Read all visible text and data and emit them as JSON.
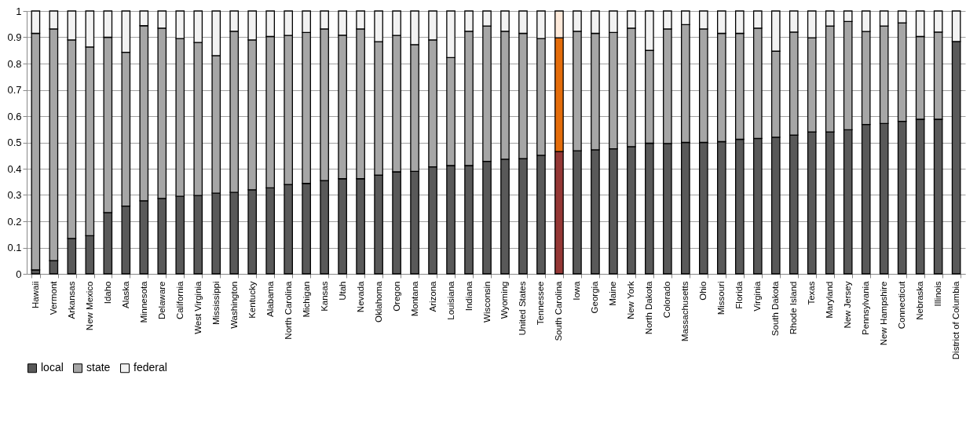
{
  "chart_data": {
    "type": "bar",
    "stacked": true,
    "categories": [
      "Hawaii",
      "Vermont",
      "Arkansas",
      "New Mexico",
      "Idaho",
      "Alaska",
      "Minnesota",
      "Delaware",
      "California",
      "West Virginia",
      "Mississippi",
      "Washington",
      "Kentucky",
      "Alabama",
      "North Carolina",
      "Michigan",
      "Kansas",
      "Utah",
      "Nevada",
      "Oklahoma",
      "Oregon",
      "Montana",
      "Arizona",
      "Louisiana",
      "Indiana",
      "Wisconsin",
      "Wyoming",
      "United States",
      "Tennessee",
      "South Carolina",
      "Iowa",
      "Georgia",
      "Maine",
      "New York",
      "North Dakota",
      "Colorado",
      "Massachusetts",
      "Ohio",
      "Missouri",
      "Florida",
      "Virginia",
      "South Dakota",
      "Rhode Island",
      "Texas",
      "Maryland",
      "New Jersey",
      "Pennsylvania",
      "New Hampshire",
      "Connecticut",
      "Nebraska",
      "Illinois",
      "District of Columbia"
    ],
    "series": [
      {
        "name": "local",
        "color": "#595959",
        "colors": [
          "#595959",
          "#595959",
          "#595959",
          "#595959",
          "#595959",
          "#595959",
          "#595959",
          "#595959",
          "#595959",
          "#595959",
          "#595959",
          "#595959",
          "#595959",
          "#595959",
          "#595959",
          "#595959",
          "#595959",
          "#595959",
          "#595959",
          "#595959",
          "#595959",
          "#595959",
          "#595959",
          "#595959",
          "#595959",
          "#595959",
          "#595959",
          "#595959",
          "#595959",
          "#953735",
          "#595959",
          "#595959",
          "#595959",
          "#595959",
          "#595959",
          "#595959",
          "#595959",
          "#595959",
          "#595959",
          "#595959",
          "#595959",
          "#595959",
          "#595959",
          "#595959",
          "#595959",
          "#595959",
          "#595959",
          "#595959",
          "#595959",
          "#595959",
          "#595959",
          "#595959"
        ],
        "values": [
          0.015,
          0.05,
          0.135,
          0.145,
          0.233,
          0.258,
          0.278,
          0.287,
          0.295,
          0.298,
          0.307,
          0.31,
          0.32,
          0.327,
          0.34,
          0.344,
          0.355,
          0.362,
          0.362,
          0.376,
          0.388,
          0.39,
          0.407,
          0.412,
          0.412,
          0.428,
          0.436,
          0.438,
          0.451,
          0.465,
          0.468,
          0.472,
          0.476,
          0.484,
          0.497,
          0.496,
          0.5,
          0.5,
          0.503,
          0.512,
          0.515,
          0.52,
          0.528,
          0.54,
          0.54,
          0.548,
          0.568,
          0.572,
          0.58,
          0.588,
          0.588,
          0.884
        ]
      },
      {
        "name": "state",
        "color": "#a6a6a6",
        "colors": [
          "#a6a6a6",
          "#a6a6a6",
          "#a6a6a6",
          "#a6a6a6",
          "#a6a6a6",
          "#a6a6a6",
          "#a6a6a6",
          "#a6a6a6",
          "#a6a6a6",
          "#a6a6a6",
          "#a6a6a6",
          "#a6a6a6",
          "#a6a6a6",
          "#a6a6a6",
          "#a6a6a6",
          "#a6a6a6",
          "#a6a6a6",
          "#a6a6a6",
          "#a6a6a6",
          "#a6a6a6",
          "#a6a6a6",
          "#a6a6a6",
          "#a6a6a6",
          "#a6a6a6",
          "#a6a6a6",
          "#a6a6a6",
          "#a6a6a6",
          "#a6a6a6",
          "#a6a6a6",
          "#e46c0a",
          "#a6a6a6",
          "#a6a6a6",
          "#a6a6a6",
          "#a6a6a6",
          "#a6a6a6",
          "#a6a6a6",
          "#a6a6a6",
          "#a6a6a6",
          "#a6a6a6",
          "#a6a6a6",
          "#a6a6a6",
          "#a6a6a6",
          "#a6a6a6",
          "#a6a6a6",
          "#a6a6a6",
          "#a6a6a6",
          "#a6a6a6",
          "#a6a6a6",
          "#a6a6a6",
          "#a6a6a6",
          "#a6a6a6",
          "#a6a6a6"
        ],
        "values": [
          0.9,
          0.882,
          0.755,
          0.718,
          0.667,
          0.585,
          0.666,
          0.648,
          0.6,
          0.582,
          0.523,
          0.613,
          0.57,
          0.576,
          0.567,
          0.574,
          0.577,
          0.546,
          0.57,
          0.507,
          0.519,
          0.482,
          0.483,
          0.411,
          0.511,
          0.515,
          0.487,
          0.477,
          0.444,
          0.433,
          0.455,
          0.443,
          0.442,
          0.451,
          0.353,
          0.436,
          0.448,
          0.432,
          0.412,
          0.403,
          0.42,
          0.327,
          0.392,
          0.358,
          0.403,
          0.412,
          0.354,
          0.371,
          0.375,
          0.315,
          0.332,
          null
        ]
      },
      {
        "name": "federal",
        "color": "#f2f2f2",
        "colors": [
          "#f2f2f2",
          "#f2f2f2",
          "#f2f2f2",
          "#f2f2f2",
          "#f2f2f2",
          "#f2f2f2",
          "#f2f2f2",
          "#f2f2f2",
          "#f2f2f2",
          "#f2f2f2",
          "#f2f2f2",
          "#f2f2f2",
          "#f2f2f2",
          "#f2f2f2",
          "#f2f2f2",
          "#f2f2f2",
          "#f2f2f2",
          "#f2f2f2",
          "#f2f2f2",
          "#f2f2f2",
          "#f2f2f2",
          "#f2f2f2",
          "#f2f2f2",
          "#f2f2f2",
          "#f2f2f2",
          "#f2f2f2",
          "#f2f2f2",
          "#f2f2f2",
          "#f2f2f2",
          "#fde9d9",
          "#f2f2f2",
          "#f2f2f2",
          "#f2f2f2",
          "#f2f2f2",
          "#f2f2f2",
          "#f2f2f2",
          "#f2f2f2",
          "#f2f2f2",
          "#f2f2f2",
          "#f2f2f2",
          "#f2f2f2",
          "#f2f2f2",
          "#f2f2f2",
          "#f2f2f2",
          "#f2f2f2",
          "#f2f2f2",
          "#f2f2f2",
          "#f2f2f2",
          "#f2f2f2",
          "#f2f2f2",
          "#f2f2f2",
          "#f2f2f2"
        ],
        "values": [
          0.085,
          0.068,
          0.11,
          0.137,
          0.1,
          0.157,
          0.056,
          0.065,
          0.105,
          0.12,
          0.17,
          0.077,
          0.11,
          0.097,
          0.093,
          0.082,
          0.068,
          0.092,
          0.068,
          0.117,
          0.093,
          0.128,
          0.11,
          0.177,
          0.077,
          0.057,
          0.077,
          0.085,
          0.105,
          0.102,
          0.077,
          0.085,
          0.082,
          0.065,
          0.15,
          0.068,
          0.052,
          0.068,
          0.085,
          0.085,
          0.065,
          0.153,
          0.08,
          0.102,
          0.057,
          0.04,
          0.078,
          0.057,
          0.045,
          0.097,
          0.08,
          0.116
        ]
      }
    ],
    "ylim": [
      0,
      1
    ],
    "yticks": [
      0,
      0.1,
      0.2,
      0.3,
      0.4,
      0.5,
      0.6,
      0.7,
      0.8,
      0.9,
      1
    ],
    "grid": "y",
    "legend": "bottom"
  }
}
